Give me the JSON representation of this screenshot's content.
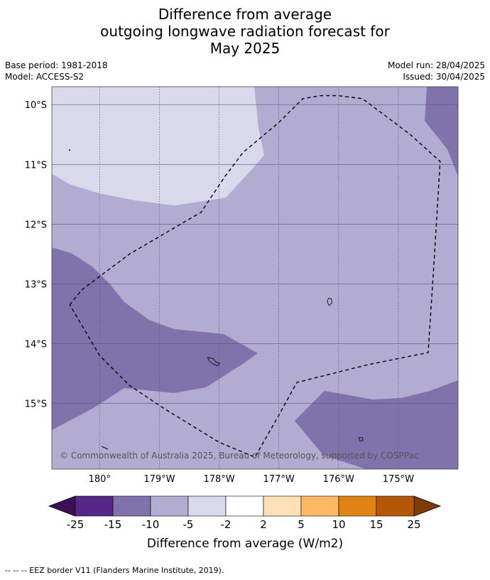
{
  "title": {
    "line1": "Difference from average",
    "line2": "outgoing longwave radiation forecast for",
    "line3": "May 2025"
  },
  "meta": {
    "base_period": "Base period: 1981-2018",
    "model": "Model: ACCESS-S2",
    "model_run": "Model run: 28/04/2025",
    "issued": "Issued: 30/04/2025"
  },
  "map": {
    "lat_range": [
      -16.1,
      -9.7
    ],
    "lon_range": [
      -180.8,
      -174.0
    ],
    "lat_ticks": [
      {
        "value": -10,
        "label": "10°S"
      },
      {
        "value": -11,
        "label": "11°S"
      },
      {
        "value": -12,
        "label": "12°S"
      },
      {
        "value": -13,
        "label": "13°S"
      },
      {
        "value": -14,
        "label": "14°S"
      },
      {
        "value": -15,
        "label": "15°S"
      }
    ],
    "lon_ticks": [
      {
        "value": -180,
        "label": "180°"
      },
      {
        "value": -179,
        "label": "179°W"
      },
      {
        "value": -178,
        "label": "178°W"
      },
      {
        "value": -177,
        "label": "177°W"
      },
      {
        "value": -176,
        "label": "176°W"
      },
      {
        "value": -175,
        "label": "175°W"
      }
    ],
    "copyright": "© Commonwealth of Australia 2025, Bureau of Meteorology, supported by COSPPac",
    "eez_border": [
      [
        -180.5,
        -13.35
      ],
      [
        -180.3,
        -13.1
      ],
      [
        -179.5,
        -12.5
      ],
      [
        -178.3,
        -11.8
      ],
      [
        -177.9,
        -11.2
      ],
      [
        -177.6,
        -10.8
      ],
      [
        -177.0,
        -10.3
      ],
      [
        -176.6,
        -9.9
      ],
      [
        -176.3,
        -9.85
      ],
      [
        -176.0,
        -9.85
      ],
      [
        -175.6,
        -9.9
      ],
      [
        -175.2,
        -10.2
      ],
      [
        -174.8,
        -10.5
      ],
      [
        -174.3,
        -10.95
      ],
      [
        -174.4,
        -12.6
      ],
      [
        -174.5,
        -14.15
      ],
      [
        -175.5,
        -14.35
      ],
      [
        -176.7,
        -14.65
      ],
      [
        -177.0,
        -15.2
      ],
      [
        -177.4,
        -15.9
      ],
      [
        -178.0,
        -15.65
      ],
      [
        -178.9,
        -15.1
      ],
      [
        -179.5,
        -14.7
      ],
      [
        -180.0,
        -14.2
      ],
      [
        -180.5,
        -13.35
      ]
    ],
    "islands": [
      [
        [
          -176.17,
          -13.24
        ],
        [
          -176.12,
          -13.25
        ],
        [
          -176.11,
          -13.32
        ],
        [
          -176.16,
          -13.36
        ],
        [
          -176.19,
          -13.3
        ],
        [
          -176.17,
          -13.24
        ]
      ],
      [
        [
          -178.19,
          -14.23
        ],
        [
          -178.1,
          -14.25
        ],
        [
          -178.05,
          -14.31
        ],
        [
          -177.99,
          -14.33
        ],
        [
          -178.03,
          -14.37
        ],
        [
          -178.1,
          -14.34
        ],
        [
          -178.17,
          -14.29
        ],
        [
          -178.19,
          -14.23
        ]
      ],
      [
        [
          -175.66,
          -15.57
        ],
        [
          -175.6,
          -15.57
        ],
        [
          -175.59,
          -15.62
        ],
        [
          -175.64,
          -15.63
        ],
        [
          -175.66,
          -15.57
        ]
      ]
    ]
  },
  "colorbar": {
    "label": "Difference from average (W/m2)",
    "ticks": [
      "-25",
      "-15",
      "-10",
      "-5",
      "-2",
      "2",
      "5",
      "10",
      "15",
      "25"
    ],
    "min_color": "#3b1154",
    "max_color": "#7f3b08",
    "colors": [
      "#542788",
      "#8073ac",
      "#b2abd2",
      "#d8daeb",
      "#ffffff",
      "#fee0b6",
      "#fdb863",
      "#e08214",
      "#b35806"
    ]
  },
  "footnote": "--  --  -- EEZ border V11 (Flanders Marine Institute, 2019)."
}
